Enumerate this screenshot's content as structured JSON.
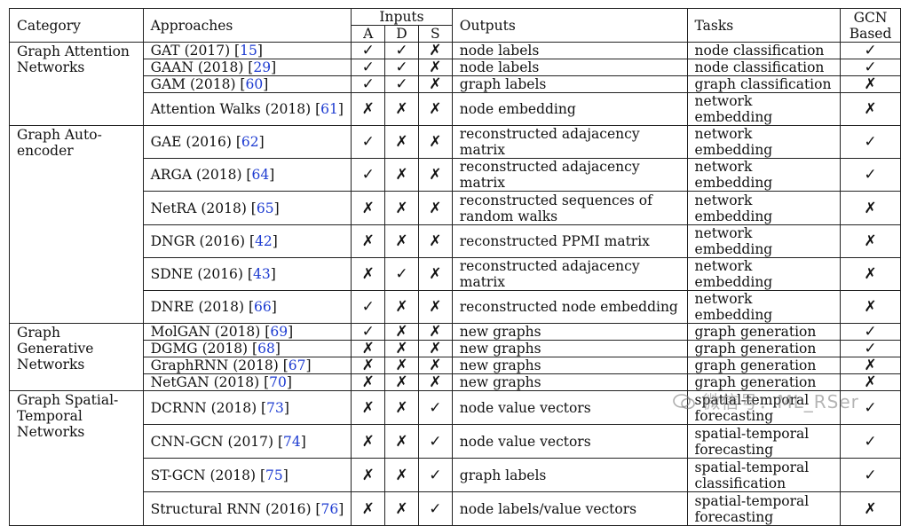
{
  "headers": {
    "category": "Category",
    "approaches": "Approaches",
    "inputs": "Inputs",
    "input_a": "A",
    "input_d": "D",
    "input_s": "S",
    "outputs": "Outputs",
    "tasks": "Tasks",
    "gcn": "GCN Based"
  },
  "marks": {
    "yes": "✓",
    "no": "✗"
  },
  "groups": [
    {
      "category": "Graph Attention Networks",
      "rows": [
        {
          "approach": "GAT (2017) [",
          "ref": "15",
          "a": "yes",
          "d": "yes",
          "s": "no",
          "output": "node labels",
          "task": "node classification",
          "gcn": "yes"
        },
        {
          "approach": "GAAN (2018) [",
          "ref": "29",
          "a": "yes",
          "d": "yes",
          "s": "no",
          "output": "node labels",
          "task": "node classification",
          "gcn": "yes"
        },
        {
          "approach": "GAM (2018) [",
          "ref": "60",
          "a": "yes",
          "d": "yes",
          "s": "no",
          "output": "graph labels",
          "task": "graph classification",
          "gcn": "no"
        },
        {
          "approach": "Attention Walks (2018) [",
          "ref": "61",
          "a": "no",
          "d": "no",
          "s": "no",
          "output": "node embedding",
          "task": "network embedding",
          "gcn": "no"
        }
      ]
    },
    {
      "category": "Graph Auto-encoder",
      "rows": [
        {
          "approach": "GAE (2016) [",
          "ref": "62",
          "a": "yes",
          "d": "no",
          "s": "no",
          "output": "reconstructed adajacency matrix",
          "task": "network embedding",
          "gcn": "yes"
        },
        {
          "approach": "ARGA (2018) [",
          "ref": "64",
          "a": "yes",
          "d": "no",
          "s": "no",
          "output": "reconstructed adajacency matrix",
          "task": "network embedding",
          "gcn": "yes"
        },
        {
          "approach": "NetRA (2018) [",
          "ref": "65",
          "a": "no",
          "d": "no",
          "s": "no",
          "output": "reconstructed sequences of random walks",
          "task": "network embedding",
          "gcn": "no"
        },
        {
          "approach": "DNGR (2016) [",
          "ref": "42",
          "a": "no",
          "d": "no",
          "s": "no",
          "output": "reconstructed PPMI matrix",
          "task": "network embedding",
          "gcn": "no"
        },
        {
          "approach": "SDNE (2016) [",
          "ref": "43",
          "a": "no",
          "d": "yes",
          "s": "no",
          "output": "reconstructed adajacency matrix",
          "task": "network embedding",
          "gcn": "no"
        },
        {
          "approach": "DNRE (2018) [",
          "ref": "66",
          "a": "yes",
          "d": "no",
          "s": "no",
          "output": "reconstructed node embedding",
          "task": "network embedding",
          "gcn": "no"
        }
      ]
    },
    {
      "category": "Graph Generative Networks",
      "rows": [
        {
          "approach": "MolGAN (2018) [",
          "ref": "69",
          "a": "yes",
          "d": "no",
          "s": "no",
          "output": "new graphs",
          "task": "graph generation",
          "gcn": "yes"
        },
        {
          "approach": "DGMG (2018) [",
          "ref": "68",
          "a": "no",
          "d": "no",
          "s": "no",
          "output": "new graphs",
          "task": "graph generation",
          "gcn": "yes"
        },
        {
          "approach": "GraphRNN (2018) [",
          "ref": "67",
          "a": "no",
          "d": "no",
          "s": "no",
          "output": "new graphs",
          "task": "graph generation",
          "gcn": "no"
        },
        {
          "approach": "NetGAN (2018) [",
          "ref": "70",
          "a": "no",
          "d": "no",
          "s": "no",
          "output": "new graphs",
          "task": "graph generation",
          "gcn": "no"
        }
      ]
    },
    {
      "category": "Graph Spatial-Temporal Networks",
      "rows": [
        {
          "approach": "DCRNN (2018) [",
          "ref": "73",
          "a": "no",
          "d": "no",
          "s": "yes",
          "output": "node value vectors",
          "task": "spatial-temporal forecasting",
          "gcn": "yes"
        },
        {
          "approach": "CNN-GCN (2017) [",
          "ref": "74",
          "a": "no",
          "d": "no",
          "s": "yes",
          "output": "node value vectors",
          "task": "spatial-temporal forecasting",
          "gcn": "yes"
        },
        {
          "approach": "ST-GCN (2018) [",
          "ref": "75",
          "a": "no",
          "d": "no",
          "s": "yes",
          "output": "graph labels",
          "task": "spatial-temporal classification",
          "gcn": "yes"
        },
        {
          "approach": "Structural RNN (2016) [",
          "ref": "76",
          "a": "no",
          "d": "no",
          "s": "yes",
          "output": "node labels/value vectors",
          "task": "spatial-temporal forecasting",
          "gcn": "no"
        }
      ]
    }
  ],
  "watermark": "微信号：ML_RSer"
}
